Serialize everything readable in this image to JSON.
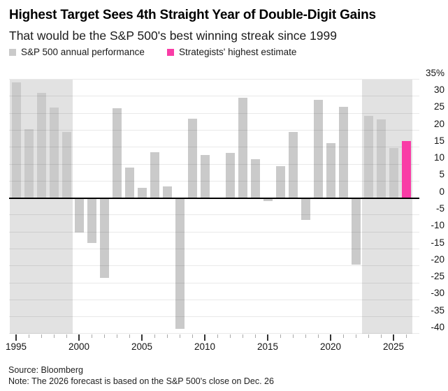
{
  "header": {
    "title": "Highest Target Sees 4th Straight Year of Double-Digit Gains",
    "subtitle": "That would be the S&P 500's best winning streak since 1999"
  },
  "legend": {
    "items": [
      {
        "label": "S&P 500 annual performance",
        "color": "#cacaca"
      },
      {
        "label": "Strategists' highest estimate",
        "color": "#f93ca6"
      }
    ]
  },
  "chart_data": {
    "type": "bar",
    "title": "Highest Target Sees 4th Straight Year of Double-Digit Gains",
    "subtitle": "That would be the S&P 500's best winning streak since 1999",
    "xlabel": "",
    "ylabel": "%",
    "ylim": [
      -40,
      35
    ],
    "grid": "horizontal",
    "legend_position": "top-left",
    "y_tick_values": [
      35,
      30,
      25,
      20,
      15,
      10,
      5,
      0,
      -5,
      -10,
      -15,
      -20,
      -25,
      -30,
      -35,
      -40
    ],
    "y_tick_labels": [
      "35%",
      "30",
      "25",
      "20",
      "15",
      "10",
      "5",
      "0",
      "-5",
      "-10",
      "-15",
      "-20",
      "-25",
      "-30",
      "-35",
      "-40"
    ],
    "x_major_tick_labels": [
      "1995",
      "2000",
      "2005",
      "2010",
      "2015",
      "2020",
      "2025"
    ],
    "x_range": [
      1995,
      2026
    ],
    "highlight_bands": [
      {
        "from": 1995,
        "to": 1999
      },
      {
        "from": 2023,
        "to": 2026
      }
    ],
    "series": [
      {
        "name": "S&P 500 annual performance",
        "color": "#cacaca",
        "points": [
          {
            "year": 1995,
            "value": 34.1
          },
          {
            "year": 1996,
            "value": 20.3
          },
          {
            "year": 1997,
            "value": 31.0
          },
          {
            "year": 1998,
            "value": 26.7
          },
          {
            "year": 1999,
            "value": 19.5
          },
          {
            "year": 2000,
            "value": -10.1
          },
          {
            "year": 2001,
            "value": -13.0
          },
          {
            "year": 2002,
            "value": -23.4
          },
          {
            "year": 2003,
            "value": 26.4
          },
          {
            "year": 2004,
            "value": 9.0
          },
          {
            "year": 2005,
            "value": 3.0
          },
          {
            "year": 2006,
            "value": 13.6
          },
          {
            "year": 2007,
            "value": 3.5
          },
          {
            "year": 2008,
            "value": -38.5
          },
          {
            "year": 2009,
            "value": 23.5
          },
          {
            "year": 2010,
            "value": 12.8
          },
          {
            "year": 2011,
            "value": 0.0
          },
          {
            "year": 2012,
            "value": 13.4
          },
          {
            "year": 2013,
            "value": 29.6
          },
          {
            "year": 2014,
            "value": 11.4
          },
          {
            "year": 2015,
            "value": -0.7
          },
          {
            "year": 2016,
            "value": 9.5
          },
          {
            "year": 2017,
            "value": 19.4
          },
          {
            "year": 2018,
            "value": -6.2
          },
          {
            "year": 2019,
            "value": 28.9
          },
          {
            "year": 2020,
            "value": 16.3
          },
          {
            "year": 2021,
            "value": 26.9
          },
          {
            "year": 2022,
            "value": -19.4
          },
          {
            "year": 2023,
            "value": 24.2
          },
          {
            "year": 2024,
            "value": 23.3
          },
          {
            "year": 2025,
            "value": 14.8
          }
        ]
      },
      {
        "name": "Strategists' highest estimate",
        "color": "#f93ca6",
        "points": [
          {
            "year": 2026,
            "value": 16.9
          }
        ]
      }
    ]
  },
  "footer": {
    "source": "Source: Bloomberg",
    "note": "Note: The 2026 forecast is based on the S&P 500's close on Dec. 26"
  }
}
